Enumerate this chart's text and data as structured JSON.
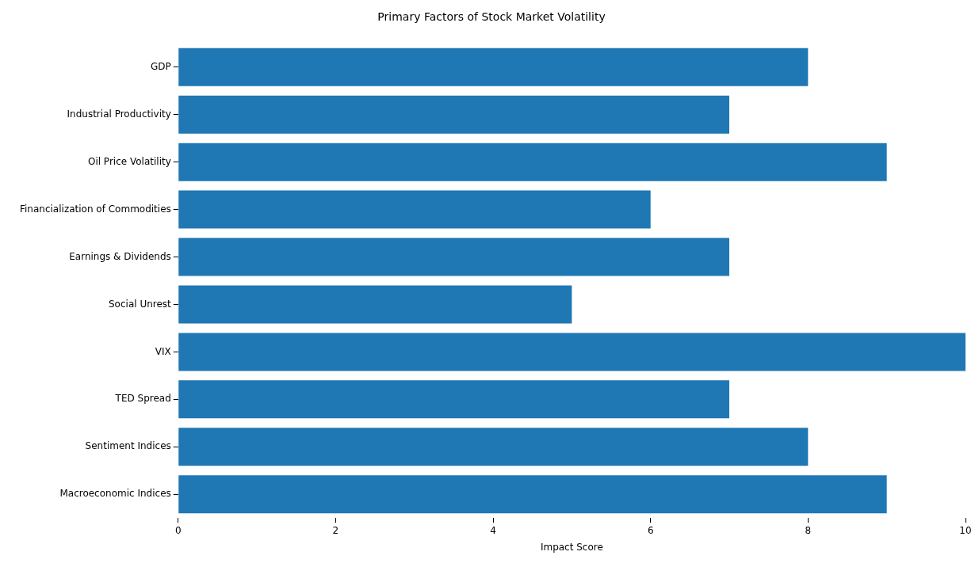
{
  "chart_data": {
    "type": "bar",
    "orientation": "horizontal",
    "title": "Primary Factors of Stock Market Volatility",
    "xlabel": "Impact Score",
    "categories": [
      "GDP",
      "Industrial Productivity",
      "Oil Price Volatility",
      "Financialization of Commodities",
      "Earnings & Dividends",
      "Social Unrest",
      "VIX",
      "TED Spread",
      "Sentiment Indices",
      "Macroeconomic Indices"
    ],
    "values": [
      8,
      7,
      9,
      6,
      7,
      5,
      10,
      7,
      8,
      9
    ],
    "color": "#1f77b4",
    "xlim": [
      0,
      10
    ],
    "xticks": [
      0,
      2,
      4,
      6,
      8,
      10
    ],
    "grid": false,
    "legend": false
  }
}
